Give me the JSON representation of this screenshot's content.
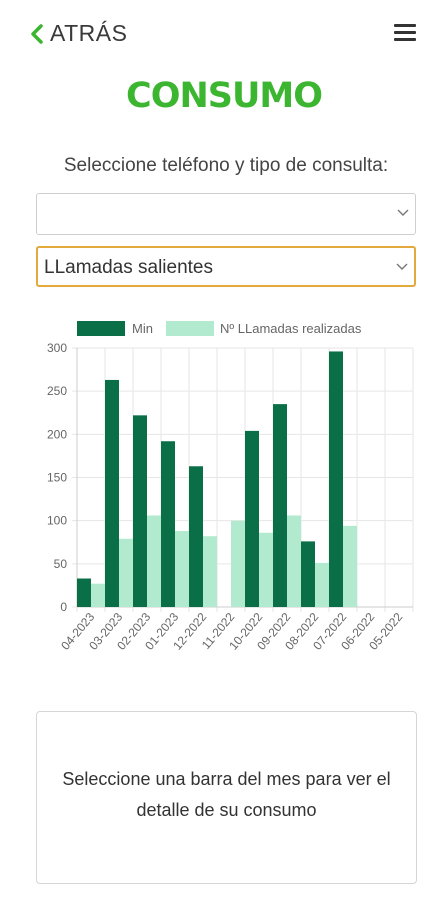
{
  "header": {
    "back_label": "ATRÁS",
    "title": "CONSUMO"
  },
  "form": {
    "instruction": "Seleccione teléfono y tipo de consulta:",
    "phone_select_value": "",
    "type_select_value": "LLamadas salientes"
  },
  "colors": {
    "accent": "#3cb530",
    "min_bar": "#0a6e47",
    "calls_bar": "#b2eacf",
    "focus_border": "#e3a93a"
  },
  "chart_data": {
    "type": "bar",
    "categories": [
      "04-2023",
      "03-2023",
      "02-2023",
      "01-2023",
      "12-2022",
      "11-2022",
      "10-2022",
      "09-2022",
      "08-2022",
      "07-2022",
      "06-2022",
      "05-2022"
    ],
    "series": [
      {
        "name": "Min",
        "values": [
          33,
          263,
          222,
          192,
          163,
          0,
          204,
          235,
          76,
          296,
          0,
          0
        ]
      },
      {
        "name": "Nº LLamadas realizadas",
        "values": [
          27,
          79,
          106,
          88,
          82,
          100,
          86,
          106,
          51,
          94,
          0,
          0
        ]
      }
    ],
    "ylim": [
      0,
      300
    ],
    "yticks": [
      0,
      50,
      100,
      150,
      200,
      250,
      300
    ],
    "grid": true,
    "legend": "top"
  },
  "info": {
    "message": "Seleccione una barra del mes para ver el detalle de su consumo"
  }
}
